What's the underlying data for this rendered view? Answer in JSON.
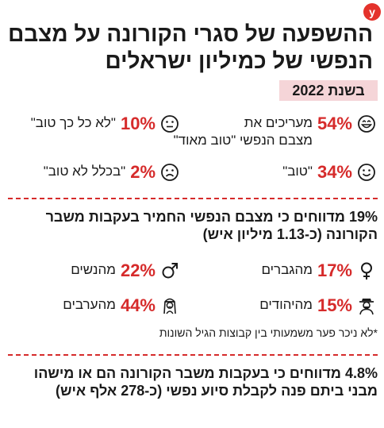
{
  "logo": {
    "letter": "y"
  },
  "title": "ההשפעה של סגרי הקורונה על מצבם הנפשי של כמיליון ישראלים",
  "year_label": "בשנת 2022",
  "ratings": [
    {
      "pct": "54%",
      "label": "מעריכים את",
      "label2": "מצבם הנפשי \"טוב מאוד\"",
      "icon": "grinning-face-icon"
    },
    {
      "pct": "10%",
      "label": "\"לא כל כך טוב\"",
      "icon": "neutral-face-icon"
    },
    {
      "pct": "34%",
      "label": "\"טוב\"",
      "icon": "smiling-face-icon"
    },
    {
      "pct": "2%",
      "label": "\"בכלל לא טוב\"",
      "icon": "frowning-face-icon"
    }
  ],
  "worsened_text": "19% מדווחים כי מצבם הנפשי החמיר בעקבות משבר הקורונה (כ-1.13 מיליון איש)",
  "groups": [
    {
      "pct": "17%",
      "label": "מהגברים",
      "icon": "female-symbol-icon"
    },
    {
      "pct": "22%",
      "label": "מהנשים",
      "icon": "male-symbol-icon"
    },
    {
      "pct": "15%",
      "label": "מהיהודים",
      "icon": "jewish-man-icon"
    },
    {
      "pct": "44%",
      "label": "מהערבים",
      "icon": "arab-man-icon"
    }
  ],
  "note": "*לא ניכר פער משמעותי בין קבוצות הגיל השונות",
  "help_text": "4.8% מדווחים כי בעקבות משבר הקורונה הם או מישהו מבני ביתם פנה לקבלת סיוע נפשי (כ-278 אלף איש)",
  "colors": {
    "accent": "#d62b2b",
    "badge_bg": "#f5d5d8",
    "logo": "#e4322b"
  }
}
